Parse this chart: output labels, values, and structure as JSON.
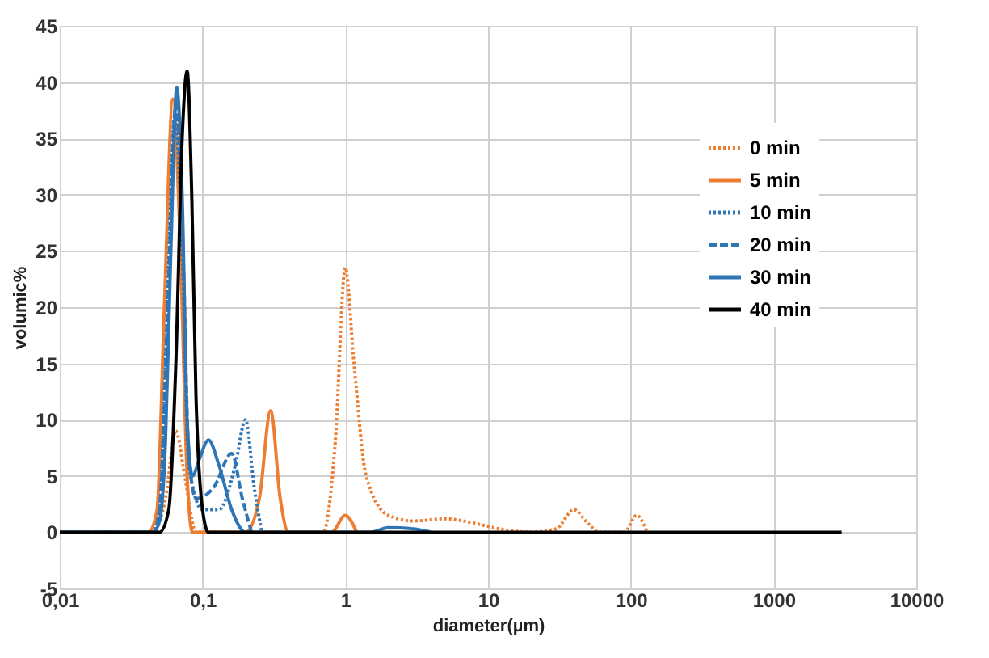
{
  "chart_data": {
    "type": "line",
    "xlabel": "diameter(µm)",
    "ylabel": "volumic%",
    "log": "x",
    "grid": true,
    "legend": "top right",
    "marker": "none",
    "xlim": [
      0.01,
      10000
    ],
    "xticks": [
      {
        "value": 0.01,
        "label": "0,01"
      },
      {
        "value": 0.1,
        "label": "0,1"
      },
      1,
      10,
      100,
      1000,
      10000
    ],
    "ylim": [
      -5,
      45
    ],
    "yticks": [
      -5,
      0,
      5,
      10,
      15,
      20,
      25,
      30,
      35,
      40,
      45
    ],
    "series": [
      {
        "name": "0 min",
        "color": "#ed7d31",
        "line_style": "dotted",
        "x": [
          0.01,
          0.045,
          0.055,
          0.065,
          0.075,
          0.09,
          0.7,
          0.85,
          1.0,
          1.15,
          1.4,
          2,
          3,
          5,
          8,
          12,
          20,
          30,
          40,
          50,
          60,
          90,
          110,
          130
        ],
        "values": [
          0,
          0,
          3,
          9,
          5,
          0,
          0,
          8,
          23.5,
          15,
          5,
          1.5,
          1,
          1.2,
          0.8,
          0.3,
          0,
          0.3,
          2,
          0.8,
          0,
          0,
          1.5,
          0
        ]
      },
      {
        "name": "5 min",
        "color": "#ed7d31",
        "line_style": "solid",
        "x": [
          0.01,
          0.042,
          0.048,
          0.054,
          0.062,
          0.07,
          0.078,
          0.085,
          0.2,
          0.25,
          0.3,
          0.35,
          0.4,
          0.8,
          1.0,
          1.2
        ],
        "values": [
          0,
          0,
          2,
          20,
          38.5,
          25,
          5,
          0,
          0,
          3,
          10.8,
          3,
          0,
          0,
          1.5,
          0
        ]
      },
      {
        "name": "10 min",
        "color": "#2e75b6",
        "line_style": "dotted",
        "x": [
          0.01,
          0.045,
          0.05,
          0.056,
          0.064,
          0.072,
          0.08,
          0.1,
          0.13,
          0.17,
          0.2,
          0.23,
          0.26
        ],
        "values": [
          0,
          0,
          2,
          18,
          37,
          25,
          6,
          2,
          2,
          6,
          10,
          4,
          0
        ]
      },
      {
        "name": "20 min",
        "color": "#2e75b6",
        "line_style": "dashed",
        "x": [
          0.01,
          0.045,
          0.05,
          0.057,
          0.065,
          0.073,
          0.08,
          0.09,
          0.12,
          0.16,
          0.19,
          0.22
        ],
        "values": [
          0,
          0,
          2,
          20,
          38,
          25,
          7,
          3,
          4,
          7,
          3,
          0
        ]
      },
      {
        "name": "30 min",
        "color": "#2e75b6",
        "line_style": "solid",
        "x": [
          0.01,
          0.045,
          0.05,
          0.055,
          0.06,
          0.066,
          0.072,
          0.078,
          0.085,
          0.095,
          0.11,
          0.13,
          0.16,
          0.2,
          1.5,
          2,
          3,
          4
        ],
        "values": [
          0,
          0,
          1,
          8,
          25,
          39.5,
          30,
          10,
          5,
          6.5,
          8.2,
          6,
          2,
          0,
          0,
          0.4,
          0.3,
          0
        ]
      },
      {
        "name": "40 min",
        "color": "#000000",
        "line_style": "solid",
        "x": [
          0.01,
          0.05,
          0.058,
          0.065,
          0.072,
          0.078,
          0.084,
          0.09,
          0.1,
          0.11,
          3000
        ],
        "values": [
          0,
          0,
          2,
          15,
          35,
          41,
          30,
          12,
          2,
          0,
          0
        ]
      }
    ]
  }
}
